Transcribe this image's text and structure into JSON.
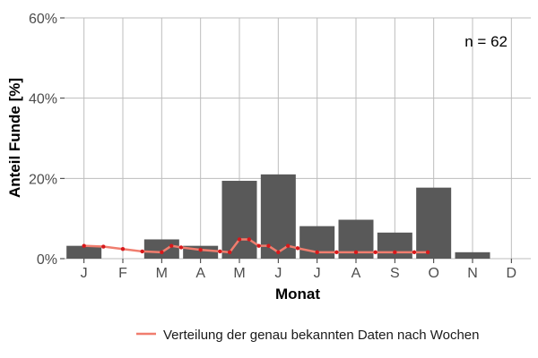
{
  "chart_data": {
    "type": "bar",
    "xlabel": "Monat",
    "ylabel": "Anteil Funde [%]",
    "ylim": [
      0,
      60
    ],
    "yticks": [
      0,
      20,
      40,
      60
    ],
    "ytick_labels": [
      "0%",
      "20%",
      "40%",
      "60%"
    ],
    "categories": [
      "J",
      "F",
      "M",
      "A",
      "M",
      "J",
      "J",
      "A",
      "S",
      "O",
      "N",
      "D"
    ],
    "values": [
      3.2,
      0,
      4.8,
      3.2,
      19.4,
      21.0,
      8.1,
      9.7,
      6.5,
      17.7,
      1.6,
      0
    ],
    "bar_color": "#595959",
    "grid": true,
    "annotation": "n = 62",
    "series": [
      {
        "name": "Verteilung der genau bekannten Daten nach Wochen",
        "type": "line",
        "color": "#f07d6e",
        "point_color": "#d7191c",
        "x": [
          1.0,
          1.5,
          2.0,
          2.5,
          3.0,
          3.25,
          3.5,
          4.0,
          4.5,
          4.75,
          5.0,
          5.25,
          5.5,
          5.75,
          6.0,
          6.25,
          6.5,
          7.0,
          7.5,
          8.0,
          8.5,
          9.0,
          9.5,
          9.85
        ],
        "y": [
          3.2,
          3.0,
          2.4,
          1.8,
          1.6,
          3.2,
          2.8,
          2.2,
          1.8,
          1.6,
          4.8,
          4.8,
          3.2,
          3.2,
          1.6,
          3.2,
          2.6,
          1.6,
          1.6,
          1.6,
          1.6,
          1.6,
          1.6,
          1.6
        ]
      }
    ],
    "legend_position": "bottom"
  }
}
